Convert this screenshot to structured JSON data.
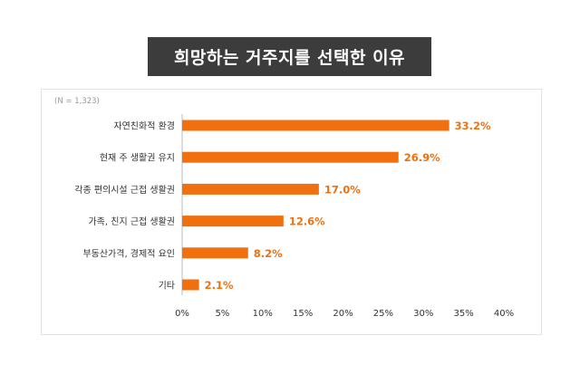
{
  "header": {
    "title": "희망하는 거주지를 선택한 이유"
  },
  "chart_data": {
    "type": "bar",
    "orientation": "horizontal",
    "note": "(N = 1,323)",
    "categories": [
      "자연친화적 환경",
      "현재 주 생활권 유지",
      "각종 편의시설 근접 생활권",
      "가족, 친지 근접 생활권",
      "부동산가격, 경제적 요인",
      "기타"
    ],
    "values": [
      33.2,
      26.9,
      17.0,
      12.6,
      8.2,
      2.1
    ],
    "value_labels": [
      "33.2%",
      "26.9%",
      "17.0%",
      "12.6%",
      "8.2%",
      "2.1%"
    ],
    "xticks": [
      "0%",
      "5%",
      "10%",
      "15%",
      "20%",
      "25%",
      "30%",
      "35%",
      "40%"
    ],
    "xlim": [
      0,
      40
    ],
    "grid": false,
    "colors": {
      "bar": "#f07010",
      "label": "#f07010",
      "title_bg": "#3c3c3c"
    }
  }
}
